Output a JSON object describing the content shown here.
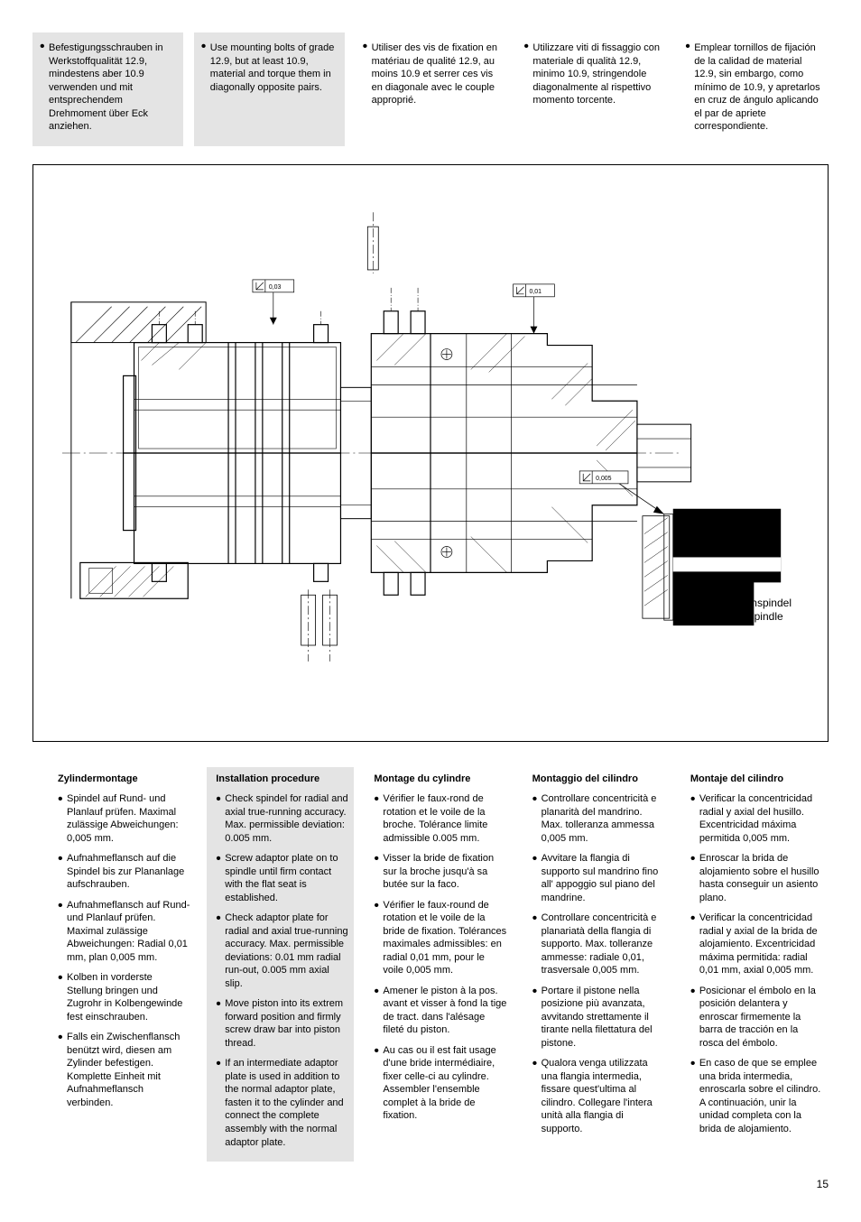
{
  "top": {
    "cols": [
      {
        "gray": true,
        "text": "Befestigungsschrauben in Werkstoffqualität 12.9, mindestens aber 10.9 verwenden und mit entsprechendem Drehmoment über Eck anziehen."
      },
      {
        "gray": true,
        "text": "Use mounting bolts of grade 12.9, but at least 10.9, material and torque them in diagonally opposite pairs."
      },
      {
        "gray": false,
        "text": "Utiliser des vis de fixation en matériau de qualité 12.9, au moins 10.9 et serrer ces vis en diagonale avec le couple approprié."
      },
      {
        "gray": false,
        "text": "Utilizzare viti di fissaggio con materiale di qualità 12.9, minimo 10.9, stringendole diagonalmente al rispettivo momento torcente."
      },
      {
        "gray": false,
        "text": "Emplear tornillos de fijación de la calidad de material 12.9, sin embargo, como mínimo de 10.9, y apretarlos en cruz de ángulo aplicando el par de apriete correspondiente."
      }
    ]
  },
  "diagram": {
    "tol_top_left": "0,03",
    "tol_top_right": "0,01",
    "tol_mid": "0,005",
    "spindle_de": "Maschinenspindel",
    "spindle_en": "machine spindle",
    "stroke": "#000000",
    "thin": 0.6,
    "med": 1.0,
    "thick": 1.4
  },
  "bottom": {
    "cols": [
      {
        "gray": false,
        "indent": true,
        "heading": "Zylindermontage",
        "items": [
          "Spindel auf Rund- und Planlauf prüfen. Maximal zulässige Abweichungen: 0,005 mm.",
          "Aufnahmeflansch auf die Spindel bis zur Plananlage aufschrauben.",
          "Aufnahmeflansch auf Rund- und Planlauf prüfen. Maximal zulässige Abweichungen: Radial 0,01 mm, plan 0,005 mm.",
          "Kolben in vorderste Stellung bringen und Zugrohr in Kolbengewinde fest einschrauben.",
          "Falls ein Zwischenflansch benützt wird, diesen am Zylinder befestigen. Komplette Einheit mit Aufnahmeflansch verbinden."
        ]
      },
      {
        "gray": true,
        "indent": false,
        "heading": "Installation procedure",
        "items": [
          "Check spindel for radial and axial true-running accuracy. Max. permissible deviation: 0.005 mm.",
          "Screw adaptor plate on to spindle until firm contact with the flat seat is established.",
          "Check adaptor plate for radial and axial true-running accuracy. Max. permissible deviations: 0.01 mm radial run-out, 0.005 mm axial slip.",
          "Move piston into its extrem forward position and firmly screw draw bar into piston thread.",
          "If an intermediate adaptor plate is used in addition to the normal adaptor plate, fasten it to the cylinder and connect the complete assembly with the normal adaptor plate."
        ]
      },
      {
        "gray": false,
        "indent": false,
        "heading": "Montage du cylindre",
        "items": [
          "Vérifier le faux-rond de rotation et le voile de la broche. Tolérance limite admissible 0.005 mm.",
          "Visser la bride de fixation sur la broche jusqu'à sa butée sur la faco.",
          "Vérifier le faux-round de rotation et le voile de la bride de fixation. Tolérances maximales admissibles: en radial 0,01 mm, pour le voile 0,005 mm.",
          "Amener le piston à la pos. avant et visser à fond la tige de tract. dans l'alésage fileté du piston.",
          "Au cas ou il est fait usage d'une bride intermédiaire, fixer celle-ci au cylindre. Assembler l'ensemble complet à la bride de fixation."
        ]
      },
      {
        "gray": false,
        "indent": false,
        "heading": "Montaggio del cilindro",
        "items": [
          "Controllare concentricità e planarità del mandrino. Max. tolleranza ammessa 0,005 mm.",
          "Avvitare la flangia di supporto sul mandrino fino all' appoggio sul piano del mandrine.",
          "Controllare concentricità e planariatà della flangia di supporto. Max. tolleranze ammesse: radiale 0,01, trasversale 0,005 mm.",
          "Portare il pistone nella posizione più avanzata, avvitando strettamente il tirante nella filettatura del pistone.",
          "Qualora venga utilizzata una flangia intermedia, fissare quest'ultima al cilindro. Collegare l'intera unità alla flangia di supporto."
        ]
      },
      {
        "gray": false,
        "indent": false,
        "heading": "Montaje del cilindro",
        "items": [
          "Verificar la concentricidad radial y axial del husillo. Excentricidad máxima permitida 0,005 mm.",
          "Enroscar la brida de alojamiento sobre el husillo hasta conseguir un asiento plano.",
          "Verificar la concentricidad radial y axial de la brida de alojamiento. Excentricidad máxima permitida: radial 0,01 mm, axial 0,005 mm.",
          "Posicionar el émbolo en la posición delantera y enroscar firmemente la barra de tracción en la rosca del émbolo.",
          "En caso de que se emplee una brida intermedia, enroscarla sobre el cilindro. A continuación, unir la unidad completa con la brida de alojamiento."
        ]
      }
    ]
  },
  "page_number": "15"
}
